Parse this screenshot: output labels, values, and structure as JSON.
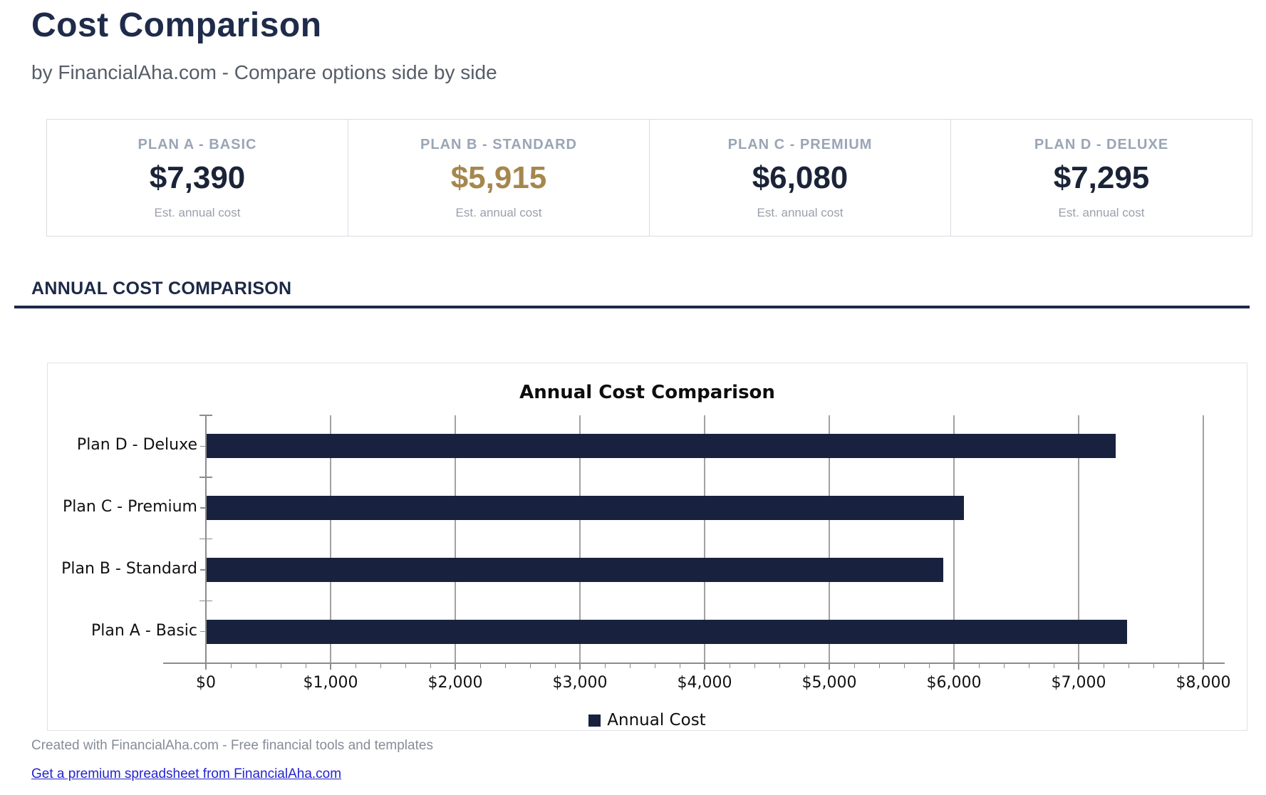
{
  "page": {
    "title": "Cost Comparison",
    "subtitle": "by FinancialAha.com - Compare options side by side",
    "footer_note": "Created with FinancialAha.com - Free financial tools and templates",
    "footer_link": "Get a premium spreadsheet from FinancialAha.com"
  },
  "cards": [
    {
      "label": "PLAN A - BASIC",
      "value": "$7,390",
      "caption": "Est. annual cost",
      "highlight": false
    },
    {
      "label": "PLAN B - STANDARD",
      "value": "$5,915",
      "caption": "Est. annual cost",
      "highlight": true
    },
    {
      "label": "PLAN C - PREMIUM",
      "value": "$6,080",
      "caption": "Est. annual cost",
      "highlight": false
    },
    {
      "label": "PLAN D - DELUXE",
      "value": "$7,295",
      "caption": "Est. annual cost",
      "highlight": false
    }
  ],
  "section": {
    "heading": "ANNUAL COST COMPARISON"
  },
  "colors": {
    "navy_heading": "#1c2947",
    "bar_navy": "#18223f",
    "gold_highlight": "#a5874e",
    "link_blue": "#2424cf"
  },
  "chart_data": {
    "type": "bar",
    "orientation": "horizontal",
    "order": "top-to-bottom",
    "title": "Annual Cost Comparison",
    "categories": [
      "Plan D - Deluxe",
      "Plan C - Premium",
      "Plan B - Standard",
      "Plan A - Basic"
    ],
    "values": [
      7295,
      6080,
      5915,
      7390
    ],
    "series_name": "Annual Cost",
    "xlabel": "",
    "ylabel": "",
    "xlim": [
      0,
      8000
    ],
    "x_major_step": 1000,
    "x_minor_step": 200,
    "x_tick_labels": [
      "$0",
      "$1,000",
      "$2,000",
      "$3,000",
      "$4,000",
      "$5,000",
      "$6,000",
      "$7,000",
      "$8,000"
    ],
    "grid": true,
    "legend_position": "bottom-center",
    "bar_color": "#18223f"
  }
}
